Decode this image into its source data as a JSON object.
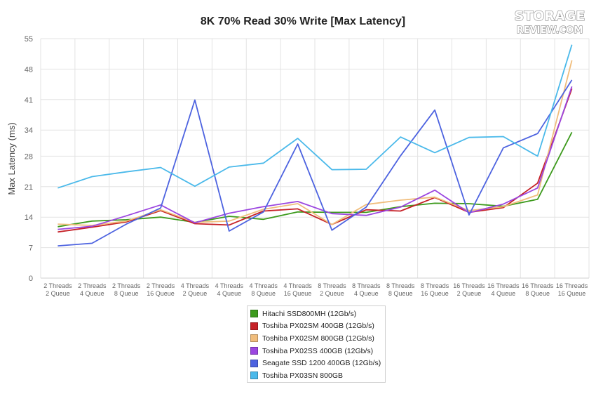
{
  "logo": {
    "line1": "STORAGE",
    "line2": "REVIEW.COM"
  },
  "chart_data": {
    "type": "line",
    "title": "8K 70% Read 30% Write [Max Latency]",
    "ylabel": "Max Latency (ms)",
    "xlabel": "",
    "ylim": [
      0,
      55
    ],
    "yticks": [
      0,
      7,
      14,
      21,
      28,
      34,
      41,
      48,
      55
    ],
    "grid": true,
    "legend_position": "bottom",
    "categories": [
      [
        "2 Threads",
        "2 Queue"
      ],
      [
        "2 Threads",
        "4 Queue"
      ],
      [
        "2 Threads",
        "8 Queue"
      ],
      [
        "2 Threads",
        "16 Queue"
      ],
      [
        "4 Threads",
        "2 Queue"
      ],
      [
        "4 Threads",
        "4 Queue"
      ],
      [
        "4 Threads",
        "8 Queue"
      ],
      [
        "4 Threads",
        "16 Queue"
      ],
      [
        "8 Threads",
        "2 Queue"
      ],
      [
        "8 Threads",
        "4 Queue"
      ],
      [
        "8 Threads",
        "8 Queue"
      ],
      [
        "8 Threads",
        "16 Queue"
      ],
      [
        "16 Threads",
        "2 Queue"
      ],
      [
        "16 Threads",
        "4 Queue"
      ],
      [
        "16 Threads",
        "8 Queue"
      ],
      [
        "16 Threads",
        "16 Queue"
      ]
    ],
    "series": [
      {
        "name": "Hitachi SSD800MH (12Gb/s)",
        "color": "#3d9a1d",
        "values": [
          11.8,
          13.1,
          13.4,
          14.0,
          12.8,
          14.2,
          13.5,
          15.2,
          15.1,
          15.1,
          16.4,
          17.2,
          17.1,
          16.5,
          18.1,
          33.5
        ]
      },
      {
        "name": "Toshiba PX02SM 400GB (12Gb/s)",
        "color": "#c62127",
        "values": [
          10.6,
          11.7,
          12.9,
          15.5,
          12.5,
          12.2,
          15.4,
          15.9,
          12.3,
          15.7,
          15.4,
          18.5,
          15.1,
          16.2,
          21.8,
          43.5
        ]
      },
      {
        "name": "Toshiba PX02SM 800GB (12Gb/s)",
        "color": "#f0bd7c",
        "values": [
          12.4,
          12.1,
          13.1,
          15.7,
          12.8,
          13.1,
          15.8,
          17.1,
          12.3,
          16.9,
          17.9,
          18.6,
          15.5,
          16.4,
          19.1,
          50.0
        ]
      },
      {
        "name": "Toshiba PX02SS 400GB (12Gb/s)",
        "color": "#9b46e0",
        "values": [
          11.2,
          11.9,
          14.3,
          16.8,
          12.7,
          14.9,
          16.4,
          17.6,
          14.8,
          14.4,
          16.3,
          20.2,
          15.0,
          17.0,
          20.7,
          44.0
        ]
      },
      {
        "name": "Seagate SSD 1200 400GB (12Gb/s)",
        "color": "#4d63e0",
        "values": [
          7.4,
          8.0,
          12.4,
          16.1,
          40.9,
          10.8,
          15.2,
          30.8,
          11.0,
          16.3,
          28.1,
          38.6,
          14.5,
          29.9,
          33.2,
          45.5
        ]
      },
      {
        "name": "Toshiba PX03SN 800GB",
        "color": "#4ab9ea",
        "values": [
          20.7,
          23.3,
          24.4,
          25.4,
          21.1,
          25.5,
          26.4,
          32.1,
          24.9,
          25.0,
          32.4,
          28.8,
          32.3,
          32.5,
          28.0,
          53.6
        ]
      }
    ]
  }
}
